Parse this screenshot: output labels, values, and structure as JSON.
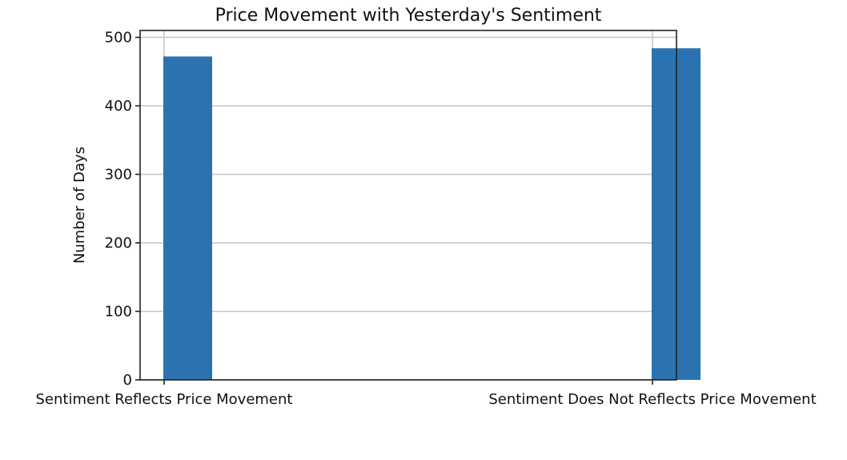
{
  "chart_data": {
    "type": "bar",
    "title": "Price Movement with Yesterday's Sentiment",
    "xlabel": "",
    "ylabel": "Number of Days",
    "categories": [
      "Sentiment Reflects Price Movement",
      "Sentiment Does Not Reflects Price Movement"
    ],
    "values": [
      472,
      484
    ],
    "ylim": [
      0,
      510
    ],
    "yticks": [
      0,
      100,
      200,
      300,
      400,
      500
    ],
    "grid": true,
    "legend": "none",
    "colors": {
      "bar": "#2a73b0",
      "grid": "#c8c8c8",
      "axis": "#222222"
    }
  }
}
